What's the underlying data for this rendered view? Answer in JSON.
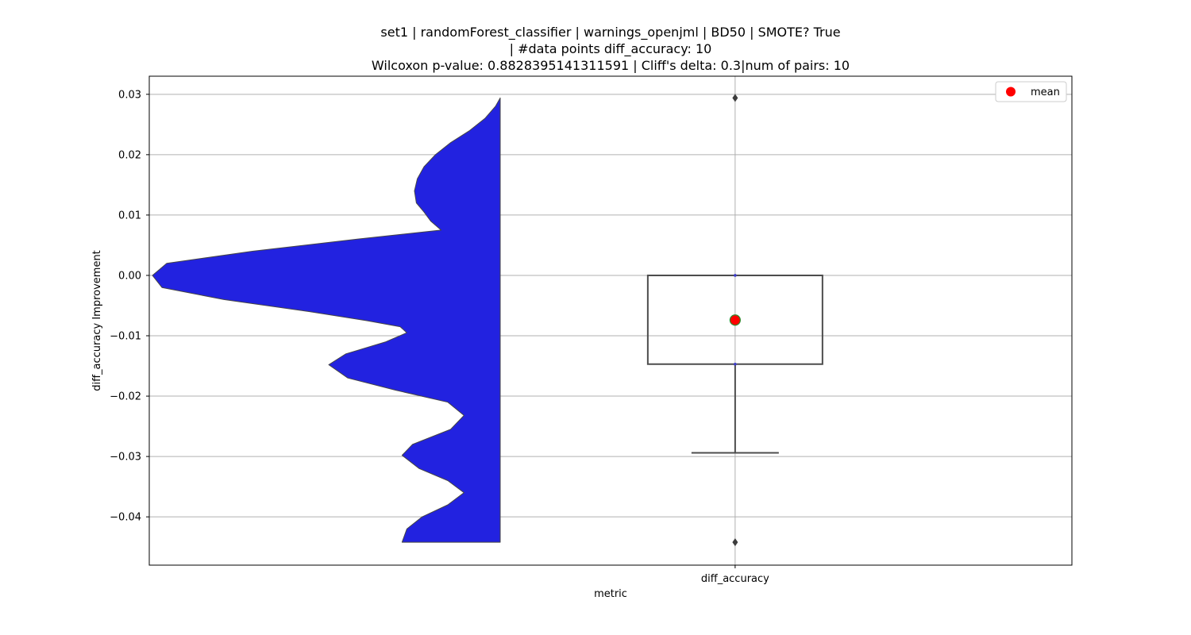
{
  "chart_data": {
    "type": "violin+box",
    "title_lines": [
      "set1 | randomForest_classifier | warnings_openjml | BD50 | SMOTE? True",
      "| #data points diff_accuracy: 10",
      "Wilcoxon p-value: 0.8828395141311591 | Cliff's delta: 0.3|num of pairs: 10"
    ],
    "xlabel": "metric",
    "ylabel": "diff_accuracy Improvement",
    "categories": [
      "diff_accuracy"
    ],
    "ylim": [
      -0.048,
      0.033
    ],
    "yticks": [
      0.03,
      0.02,
      0.01,
      0.0,
      -0.01,
      -0.02,
      -0.03,
      -0.04
    ],
    "ytick_labels": [
      "0.03",
      "0.02",
      "0.01",
      "0.00",
      "−0.01",
      "−0.02",
      "−0.03",
      "−0.04"
    ],
    "grid": true,
    "legend": {
      "position": "top-right",
      "entries": [
        {
          "label": "mean",
          "color": "#ff0000"
        }
      ]
    },
    "violin": {
      "color": "#2222e0",
      "side": "left",
      "y_range": [
        -0.0442,
        0.0294
      ],
      "density_profile": [
        [
          0.0294,
          0.0
        ],
        [
          0.028,
          0.05
        ],
        [
          0.026,
          0.16
        ],
        [
          0.024,
          0.32
        ],
        [
          0.022,
          0.52
        ],
        [
          0.02,
          0.68
        ],
        [
          0.018,
          0.8
        ],
        [
          0.016,
          0.87
        ],
        [
          0.014,
          0.9
        ],
        [
          0.012,
          0.88
        ],
        [
          0.0105,
          0.8
        ],
        [
          0.009,
          0.73
        ],
        [
          0.0075,
          0.62
        ],
        [
          0.006,
          1.5
        ],
        [
          0.004,
          2.6
        ],
        [
          0.002,
          3.5
        ],
        [
          0.0,
          3.65
        ],
        [
          -0.002,
          3.55
        ],
        [
          -0.004,
          2.9
        ],
        [
          -0.006,
          2.0
        ],
        [
          -0.0075,
          1.4
        ],
        [
          -0.0085,
          1.05
        ],
        [
          -0.0095,
          0.98
        ],
        [
          -0.011,
          1.2
        ],
        [
          -0.013,
          1.62
        ],
        [
          -0.0148,
          1.8
        ],
        [
          -0.017,
          1.6
        ],
        [
          -0.019,
          1.1
        ],
        [
          -0.021,
          0.55
        ],
        [
          -0.0232,
          0.38
        ],
        [
          -0.0255,
          0.52
        ],
        [
          -0.028,
          0.92
        ],
        [
          -0.0298,
          1.03
        ],
        [
          -0.032,
          0.85
        ],
        [
          -0.034,
          0.55
        ],
        [
          -0.036,
          0.38
        ],
        [
          -0.038,
          0.55
        ],
        [
          -0.04,
          0.82
        ],
        [
          -0.042,
          0.98
        ],
        [
          -0.0442,
          1.03
        ]
      ]
    },
    "box": {
      "q1": -0.0147,
      "median": 0.0,
      "q3": 0.0,
      "whisker_low": -0.0294,
      "whisker_high": 0.0,
      "mean": -0.0074,
      "outliers": [
        0.0294,
        -0.0442
      ]
    }
  }
}
